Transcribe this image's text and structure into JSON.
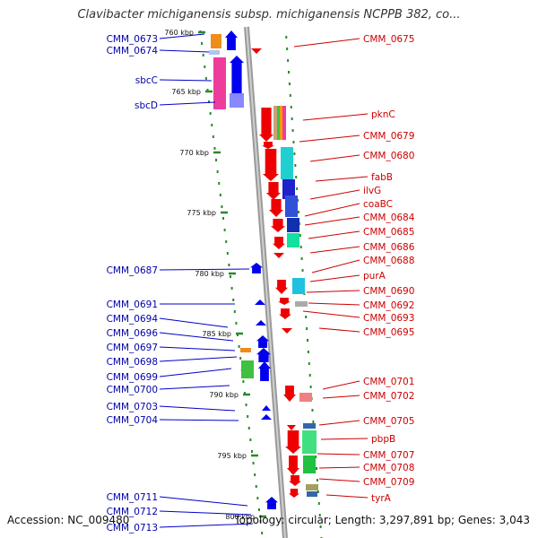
{
  "title": "Clavibacter michiganensis subsp. michiganensis NCPPB 382, co...",
  "footer": {
    "accession": "Accession: NC_009480",
    "summary": "Topology: circular; Length: 3,297,891 bp; Genes: 3,043"
  },
  "ticks": [
    {
      "label": "760 kbp"
    },
    {
      "label": "765 kbp"
    },
    {
      "label": "770 kbp"
    },
    {
      "label": "775 kbp"
    },
    {
      "label": "780 kbp"
    },
    {
      "label": "785 kbp"
    },
    {
      "label": "790 kbp"
    },
    {
      "label": "795 kbp"
    },
    {
      "label": "800 kbp"
    }
  ],
  "left_genes": [
    "CMM_0673",
    "CMM_0674",
    "sbcC",
    "sbcD",
    "CMM_0687",
    "CMM_0691",
    "CMM_0694",
    "CMM_0696",
    "CMM_0697",
    "CMM_0698",
    "CMM_0699",
    "CMM_0700",
    "CMM_0703",
    "CMM_0704",
    "CMM_0711",
    "CMM_0712",
    "CMM_0713"
  ],
  "right_genes": [
    "CMM_0675",
    "pknC",
    "CMM_0679",
    "CMM_0680",
    "fabB",
    "ilvG",
    "coaBC",
    "CMM_0684",
    "CMM_0685",
    "CMM_0686",
    "CMM_0688",
    "purA",
    "CMM_0690",
    "CMM_0692",
    "CMM_0693",
    "CMM_0695",
    "CMM_0701",
    "CMM_0702",
    "CMM_0705",
    "pbpB",
    "CMM_0707",
    "CMM_0708",
    "CMM_0709",
    "tyrA"
  ],
  "colors": {
    "forward_strand": "#0000ee",
    "reverse_strand": "#ee0000",
    "backbone": "#9a9a9a",
    "tick": "#2a8a2a",
    "left_label": "#0000aa",
    "right_label": "#cc0000"
  }
}
